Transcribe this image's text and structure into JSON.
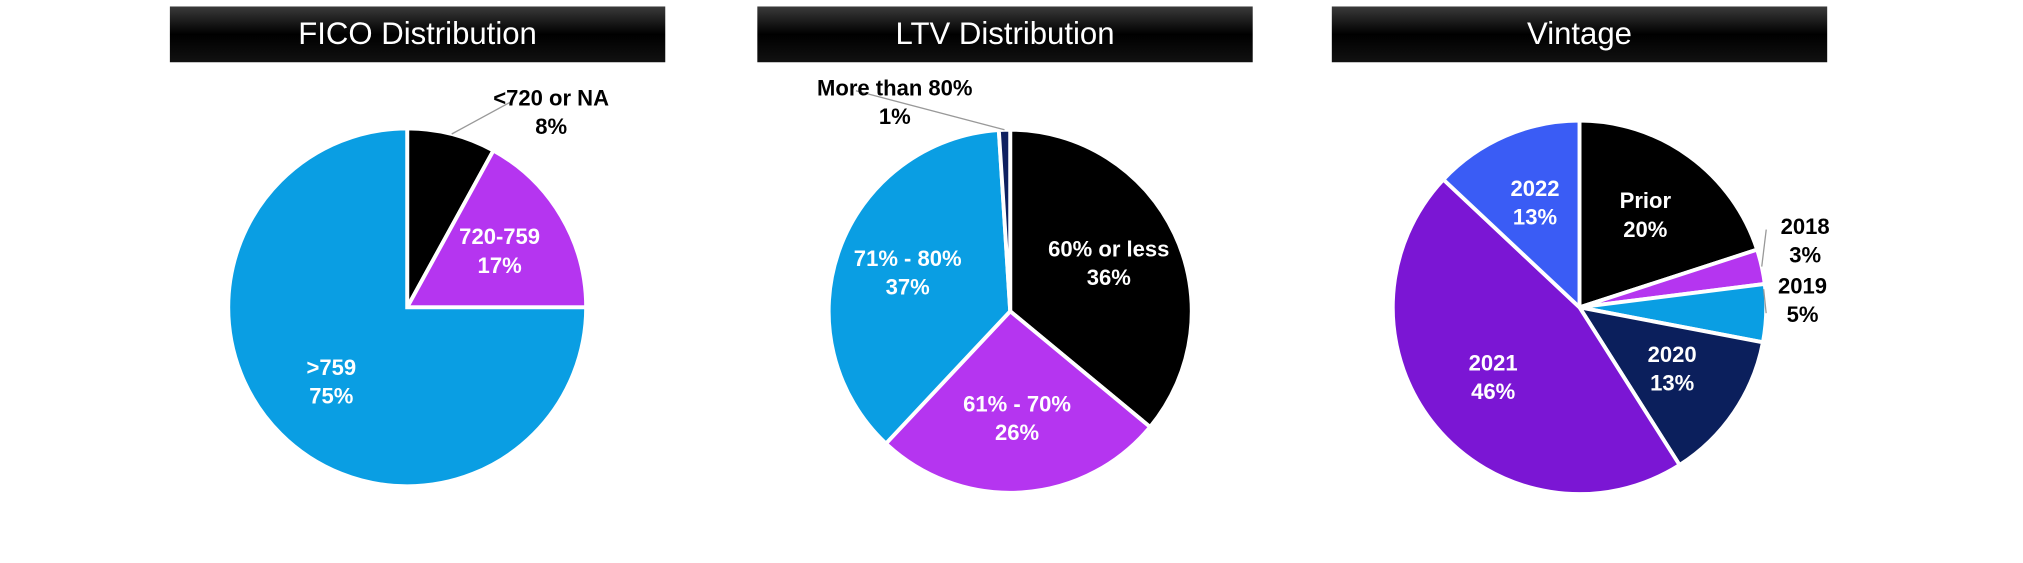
{
  "chart_data": [
    {
      "type": "pie",
      "title": "FICO Distribution",
      "categories": [
        "<720 or NA",
        "720-759",
        ">759"
      ],
      "values": [
        8,
        17,
        75
      ],
      "value_labels": [
        "8%",
        "17%",
        "75%"
      ],
      "colors": [
        "#000000",
        "#b535f0",
        "#0a9ee3"
      ]
    },
    {
      "type": "pie",
      "title": "LTV Distribution",
      "categories": [
        "60% or less",
        "61% - 70%",
        "71% - 80%",
        "More than 80%"
      ],
      "values": [
        36,
        26,
        37,
        1
      ],
      "value_labels": [
        "36%",
        "26%",
        "37%",
        "1%"
      ],
      "colors": [
        "#000000",
        "#b535f0",
        "#0a9ee3",
        "#0f2060"
      ]
    },
    {
      "type": "pie",
      "title": "Vintage",
      "categories": [
        "Prior",
        "2018",
        "2019",
        "2020",
        "2021",
        "2022"
      ],
      "values": [
        20,
        3,
        5,
        13,
        46,
        13
      ],
      "value_labels": [
        "20%",
        "3%",
        "5%",
        "13%",
        "46%",
        "13%"
      ],
      "colors": [
        "#000000",
        "#b535f0",
        "#0a9ee3",
        "#0b1f5c",
        "#7b16d4",
        "#3a5cf5"
      ]
    }
  ]
}
